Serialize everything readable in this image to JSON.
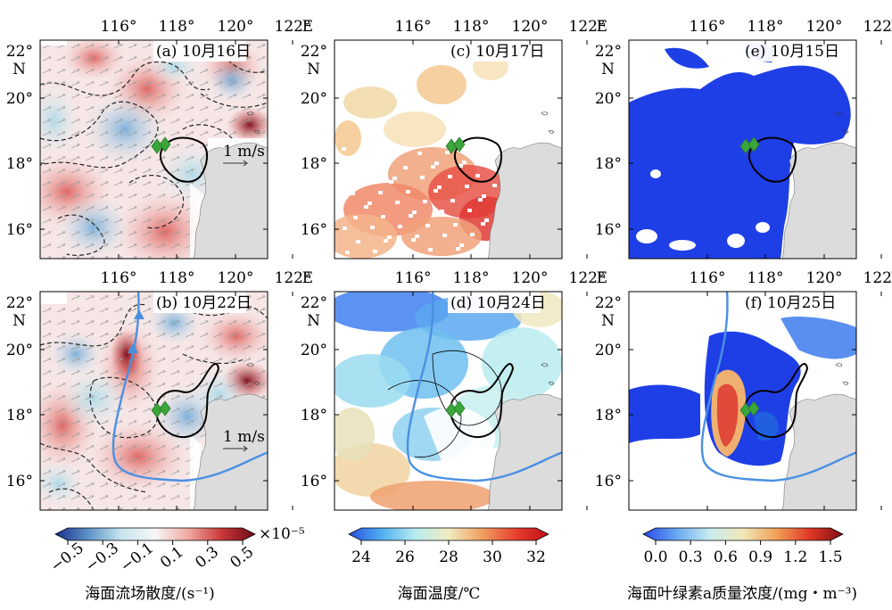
{
  "axes": {
    "lon_ticks": [
      "116°",
      "118°",
      "120°",
      "122°"
    ],
    "lon_suffix": "E",
    "lat_ticks": [
      "22°",
      "20°",
      "18°",
      "16°"
    ],
    "lat_suffix": "N"
  },
  "panels": [
    {
      "id": "a",
      "title": "(a) 10月16日",
      "field": "divergence",
      "has_vectors": true,
      "vector_label": "1 m/s",
      "has_track": false
    },
    {
      "id": "c",
      "title": "(c) 10月17日",
      "field": "sst",
      "has_vectors": false,
      "has_track": false
    },
    {
      "id": "e",
      "title": "(e) 10月15日",
      "field": "chl",
      "has_vectors": false,
      "has_track": false
    },
    {
      "id": "b",
      "title": "(b) 10月22日",
      "field": "divergence",
      "has_vectors": true,
      "vector_label": "1 m/s",
      "has_track": true
    },
    {
      "id": "d",
      "title": "(d) 10月24日",
      "field": "sst",
      "has_vectors": false,
      "has_track": true
    },
    {
      "id": "f",
      "title": "(f) 10月25日",
      "field": "chl",
      "has_vectors": false,
      "has_track": true
    }
  ],
  "colorbars": [
    {
      "id": "divergence",
      "ticks": [
        "−0.5",
        "−0.3",
        "−0.1",
        "0.1",
        "0.3",
        "0.5"
      ],
      "multiplier": "×10⁻⁵",
      "caption": "海面流场散度/(s⁻¹)",
      "colors": [
        "#1a2f8c",
        "#5d94c8",
        "#c8e6ef",
        "#f7f7f7",
        "#f0a8a0",
        "#c83838",
        "#6e0a16"
      ]
    },
    {
      "id": "sst",
      "ticks": [
        "24",
        "26",
        "28",
        "30",
        "32"
      ],
      "caption": "海面温度/℃",
      "colors": [
        "#2850e0",
        "#50b0f0",
        "#b8ecf0",
        "#f0ecc0",
        "#f0a060",
        "#e84030",
        "#c01018"
      ]
    },
    {
      "id": "chl",
      "ticks": [
        "0.0",
        "0.3",
        "0.6",
        "0.9",
        "1.2",
        "1.5"
      ],
      "caption": "海面叶绿素a质量浓度/(mg・m⁻³)",
      "colors": [
        "#2848e8",
        "#68a8f0",
        "#c8ecf0",
        "#f0e8b8",
        "#f0a058",
        "#e03828",
        "#801010"
      ]
    }
  ],
  "colors": {
    "land": "#dcdcdc",
    "track": "#4a90e2",
    "marker": "#3aa63a",
    "contour": "#000000",
    "chl_low": "#1f3fe6"
  }
}
